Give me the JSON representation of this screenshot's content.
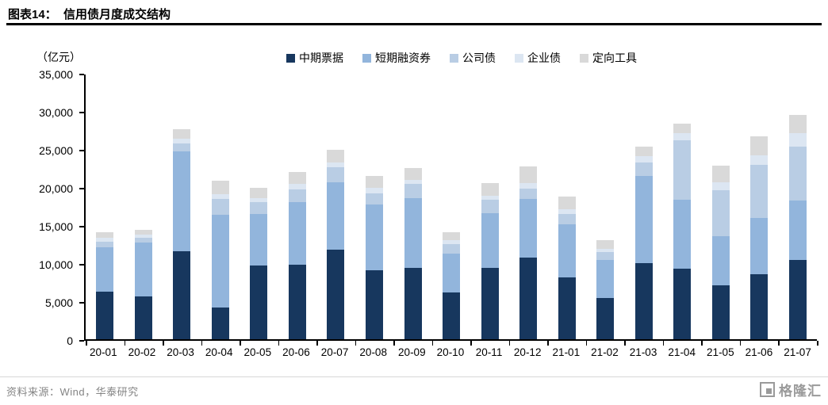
{
  "page": {
    "title": "图表14：  信用债月度成交结构",
    "unit_label": "（亿元）",
    "source": "资料来源：Wind，华泰研究",
    "logo_text": "格隆汇"
  },
  "chart_data": {
    "type": "bar",
    "stacked": true,
    "title": "信用债月度成交结构",
    "unit": "亿元",
    "grid": false,
    "legend_position": "top",
    "ylabel": "（亿元）",
    "ylim": [
      0,
      35000
    ],
    "ytick_step": 5000,
    "yticks": [
      "0",
      "5,000",
      "10,000",
      "15,000",
      "20,000",
      "25,000",
      "30,000",
      "35,000"
    ],
    "categories": [
      "20-01",
      "20-02",
      "20-03",
      "20-04",
      "20-05",
      "20-06",
      "20-07",
      "20-08",
      "20-09",
      "20-10",
      "20-11",
      "20-12",
      "21-01",
      "21-02",
      "21-03",
      "21-04",
      "21-05",
      "21-06",
      "21-07"
    ],
    "series": [
      {
        "name": "中期票据",
        "color": "#17375E",
        "values": [
          6300,
          5700,
          11600,
          4200,
          9700,
          9800,
          11800,
          9100,
          9400,
          6200,
          9400,
          10800,
          8200,
          5400,
          10100,
          9300,
          7100,
          8600,
          10500
        ]
      },
      {
        "name": "短期融资券",
        "color": "#92B5DC",
        "values": [
          5900,
          7100,
          13200,
          12300,
          6900,
          8300,
          8900,
          8700,
          9300,
          5100,
          7300,
          7800,
          7000,
          5100,
          11500,
          9100,
          6500,
          7400,
          7800
        ]
      },
      {
        "name": "公司债",
        "color": "#B9CDE4",
        "values": [
          700,
          600,
          1100,
          2000,
          1500,
          1700,
          2000,
          1500,
          1800,
          1300,
          1700,
          1300,
          1400,
          1000,
          1800,
          7900,
          6100,
          7100,
          7200
        ]
      },
      {
        "name": "企业债",
        "color": "#DCE6F2",
        "values": [
          500,
          400,
          600,
          700,
          600,
          700,
          700,
          700,
          600,
          500,
          600,
          800,
          600,
          500,
          800,
          1000,
          1100,
          1200,
          1800
        ]
      },
      {
        "name": "定向工具",
        "color": "#D9D9D9",
        "values": [
          800,
          700,
          1300,
          1800,
          1300,
          1600,
          1700,
          1600,
          1500,
          1100,
          1700,
          2100,
          1700,
          1100,
          1300,
          1200,
          2200,
          2500,
          2400
        ]
      }
    ],
    "totals": [
      14200,
      14500,
      27800,
      21000,
      20000,
      22100,
      25100,
      21600,
      22600,
      14200,
      20700,
      22800,
      18900,
      13100,
      25500,
      28500,
      23000,
      26800,
      29700
    ]
  }
}
